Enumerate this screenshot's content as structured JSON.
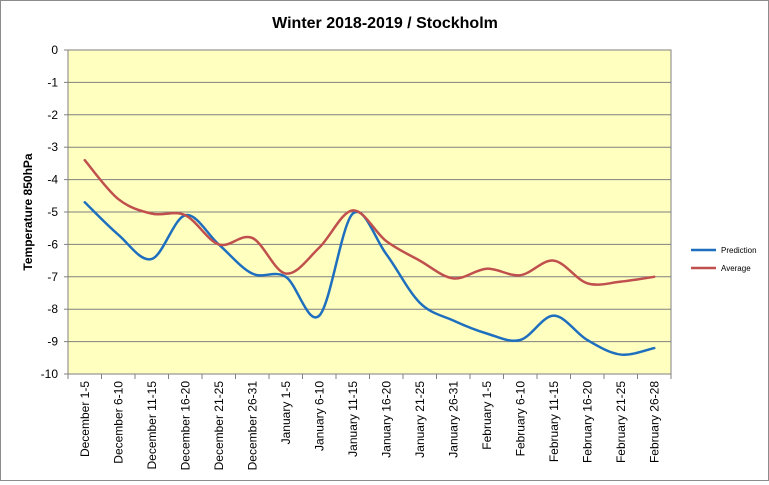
{
  "chart_data": {
    "type": "line",
    "title": "Winter 2018-2019 / Stockholm",
    "xlabel": "",
    "ylabel": "Temperature 850hPa",
    "ylim": [
      -10,
      0
    ],
    "yticks": [
      0,
      -1,
      -2,
      -3,
      -4,
      -5,
      -6,
      -7,
      -8,
      -9,
      -10
    ],
    "grid": "horizontal",
    "legend_position": "right",
    "plot_background": "#ffffc0",
    "categories": [
      "December 1-5",
      "December 6-10",
      "December 11-15",
      "December 16-20",
      "December 21-25",
      "December 26-31",
      "January 1-5",
      "January 6-10",
      "January 11-15",
      "January 16-20",
      "January 21-25",
      "January 26-31",
      "February 1-5",
      "February 6-10",
      "February 11-15",
      "February 16-20",
      "February 21-25",
      "February 26-28"
    ],
    "series": [
      {
        "name": "Prediction",
        "color": "#1f6fbf",
        "values": [
          -4.7,
          -5.7,
          -6.45,
          -5.1,
          -6.0,
          -6.9,
          -7.0,
          -8.2,
          -5.05,
          -6.3,
          -7.8,
          -8.35,
          -8.75,
          -8.95,
          -8.2,
          -8.95,
          -9.4,
          -9.2
        ]
      },
      {
        "name": "Average",
        "color": "#c0504d",
        "values": [
          -3.4,
          -4.6,
          -5.05,
          -5.1,
          -6.0,
          -5.8,
          -6.9,
          -6.1,
          -4.95,
          -5.9,
          -6.5,
          -7.05,
          -6.75,
          -6.95,
          -6.5,
          -7.2,
          -7.15,
          -7.0
        ]
      }
    ]
  }
}
